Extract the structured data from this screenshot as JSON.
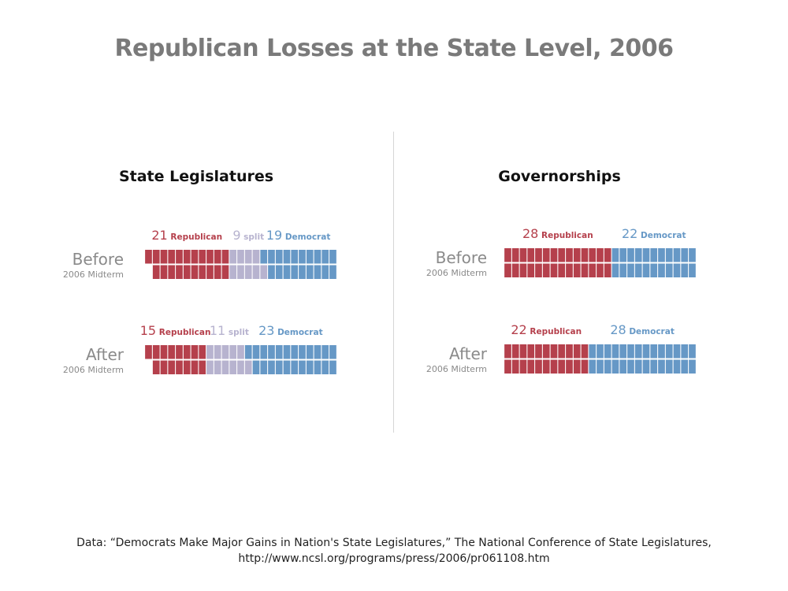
{
  "title": "Republican Losses at the State Level, 2006",
  "colors": {
    "republican": "#b5404c",
    "split": "#b7b3cf",
    "democrat": "#6698c6"
  },
  "source": {
    "line1": "Data: “Democrats Make Major Gains in Nation's State Legislatures,” The National Conference of State Legislatures,",
    "line2": "http://www.ncsl.org/programs/press/2006/pr061108.htm"
  },
  "chart_data": [
    {
      "type": "bar",
      "title": "State Legislatures",
      "rows": [
        {
          "label": "Before",
          "sublabel": "2006 Midterm",
          "segments": [
            {
              "name": "Republican",
              "value": 21
            },
            {
              "name": "split",
              "value": 9
            },
            {
              "name": "Democrat",
              "value": 19
            }
          ]
        },
        {
          "label": "After",
          "sublabel": "2006 Midterm",
          "segments": [
            {
              "name": "Republican",
              "value": 15
            },
            {
              "name": "split",
              "value": 11
            },
            {
              "name": "Democrat",
              "value": 23
            }
          ]
        }
      ]
    },
    {
      "type": "bar",
      "title": "Governorships",
      "rows": [
        {
          "label": "Before",
          "sublabel": "2006 Midterm",
          "segments": [
            {
              "name": "Republican",
              "value": 28
            },
            {
              "name": "Democrat",
              "value": 22
            }
          ]
        },
        {
          "label": "After",
          "sublabel": "2006 Midterm",
          "segments": [
            {
              "name": "Republican",
              "value": 22
            },
            {
              "name": "Democrat",
              "value": 28
            }
          ]
        }
      ]
    }
  ]
}
